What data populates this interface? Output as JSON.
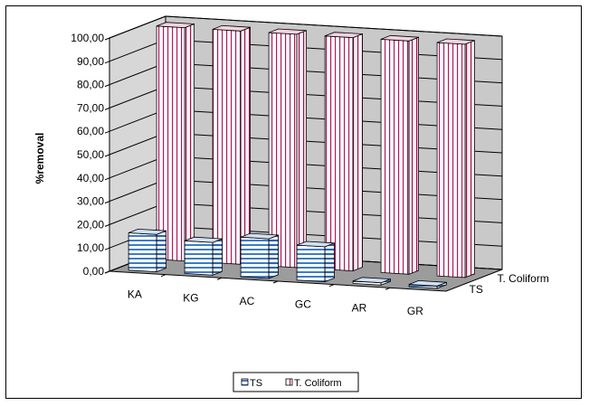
{
  "chart_data": {
    "type": "bar",
    "style": "3d-column",
    "categories": [
      "KA",
      "KG",
      "AC",
      "GC",
      "AR",
      "GR"
    ],
    "series": [
      {
        "name": "TS",
        "values": [
          16.0,
          14.0,
          17.0,
          15.0,
          1.0,
          1.0
        ],
        "color": "#4a84c6",
        "pattern": "horizontal-stripes"
      },
      {
        "name": "T. Coliform",
        "values": [
          100.0,
          100.0,
          100.0,
          100.0,
          100.0,
          100.0
        ],
        "color": "#c2185b",
        "pattern": "vertical-stripes"
      }
    ],
    "ylabel": "%removal",
    "xlabel": "",
    "ylim": [
      0,
      100
    ],
    "yticks": [
      "0,00",
      "10,00",
      "20,00",
      "30,00",
      "40,00",
      "50,00",
      "60,00",
      "70,00",
      "80,00",
      "90,00",
      "100,00"
    ],
    "depth_labels": [
      "T. Coliform",
      "TS"
    ],
    "grid": true,
    "legend": "bottom-center"
  }
}
